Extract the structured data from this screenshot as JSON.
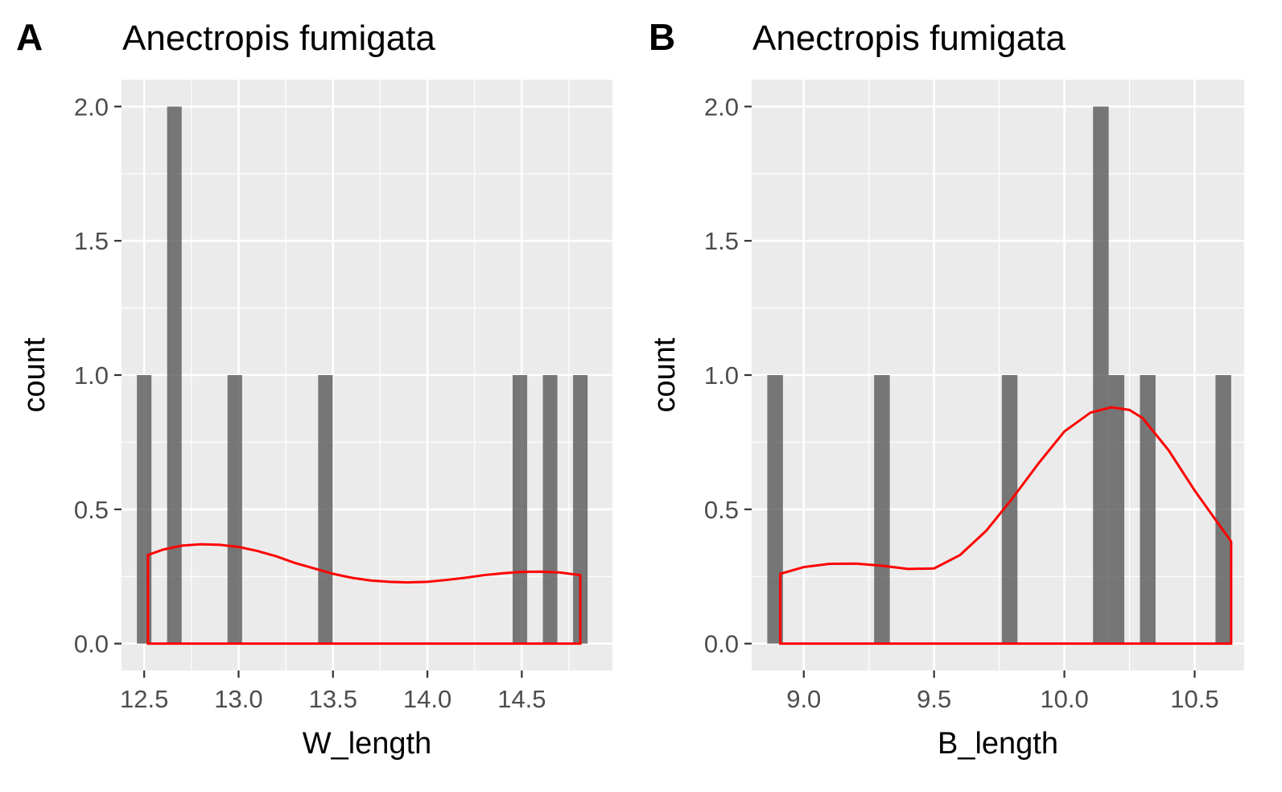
{
  "chart_data": [
    {
      "panel": "A",
      "type": "bar",
      "title": "Anectropis fumigata",
      "xlabel": "W_length",
      "ylabel": "count",
      "xlim": [
        12.38,
        14.98
      ],
      "ylim": [
        -0.1,
        2.1
      ],
      "xticks": [
        12.5,
        13.0,
        13.5,
        14.0,
        14.5
      ],
      "yticks": [
        0.0,
        0.5,
        1.0,
        1.5,
        2.0
      ],
      "xtick_labels": [
        "12.5",
        "13.0",
        "13.5",
        "14.0",
        "14.5"
      ],
      "ytick_labels": [
        "0.0",
        "0.5",
        "1.0",
        "1.5",
        "2.0"
      ],
      "grid": true,
      "bin_width": 0.077,
      "bars": [
        {
          "x": 12.5,
          "count": 1
        },
        {
          "x": 12.66,
          "count": 2
        },
        {
          "x": 12.98,
          "count": 1
        },
        {
          "x": 13.46,
          "count": 1
        },
        {
          "x": 14.49,
          "count": 1
        },
        {
          "x": 14.65,
          "count": 1
        },
        {
          "x": 14.81,
          "count": 1
        }
      ],
      "density": {
        "color": "#ff0000",
        "x": [
          12.52,
          12.6,
          12.7,
          12.8,
          12.9,
          13.0,
          13.1,
          13.2,
          13.3,
          13.4,
          13.5,
          13.6,
          13.7,
          13.8,
          13.9,
          14.0,
          14.1,
          14.2,
          14.3,
          14.4,
          14.5,
          14.6,
          14.7,
          14.81
        ],
        "y": [
          0.33,
          0.35,
          0.365,
          0.37,
          0.368,
          0.36,
          0.345,
          0.325,
          0.3,
          0.28,
          0.26,
          0.245,
          0.235,
          0.23,
          0.228,
          0.23,
          0.237,
          0.245,
          0.255,
          0.262,
          0.267,
          0.268,
          0.265,
          0.255
        ]
      },
      "bar_color": "#595959",
      "panel_bg": "#ebebeb"
    },
    {
      "panel": "B",
      "type": "bar",
      "title": "Anectropis fumigata",
      "xlabel": "B_length",
      "ylabel": "count",
      "xlim": [
        8.8,
        10.69
      ],
      "ylim": [
        -0.1,
        2.1
      ],
      "xticks": [
        9.0,
        9.5,
        10.0,
        10.5
      ],
      "yticks": [
        0.0,
        0.5,
        1.0,
        1.5,
        2.0
      ],
      "xtick_labels": [
        "9.0",
        "9.5",
        "10.0",
        "10.5"
      ],
      "ytick_labels": [
        "0.0",
        "0.5",
        "1.0",
        "1.5",
        "2.0"
      ],
      "grid": true,
      "bin_width": 0.06,
      "bars": [
        {
          "x": 8.89,
          "count": 1
        },
        {
          "x": 9.3,
          "count": 1
        },
        {
          "x": 9.79,
          "count": 1
        },
        {
          "x": 10.14,
          "count": 2
        },
        {
          "x": 10.2,
          "count": 1
        },
        {
          "x": 10.32,
          "count": 1
        },
        {
          "x": 10.61,
          "count": 1
        }
      ],
      "density": {
        "color": "#ff0000",
        "x": [
          8.91,
          9.0,
          9.1,
          9.2,
          9.3,
          9.4,
          9.5,
          9.6,
          9.7,
          9.8,
          9.9,
          10.0,
          10.1,
          10.18,
          10.25,
          10.3,
          10.4,
          10.5,
          10.64
        ],
        "y": [
          0.26,
          0.285,
          0.297,
          0.298,
          0.29,
          0.278,
          0.28,
          0.33,
          0.42,
          0.54,
          0.67,
          0.79,
          0.86,
          0.88,
          0.87,
          0.84,
          0.72,
          0.57,
          0.38
        ]
      },
      "bar_color": "#595959",
      "panel_bg": "#ebebeb"
    }
  ]
}
